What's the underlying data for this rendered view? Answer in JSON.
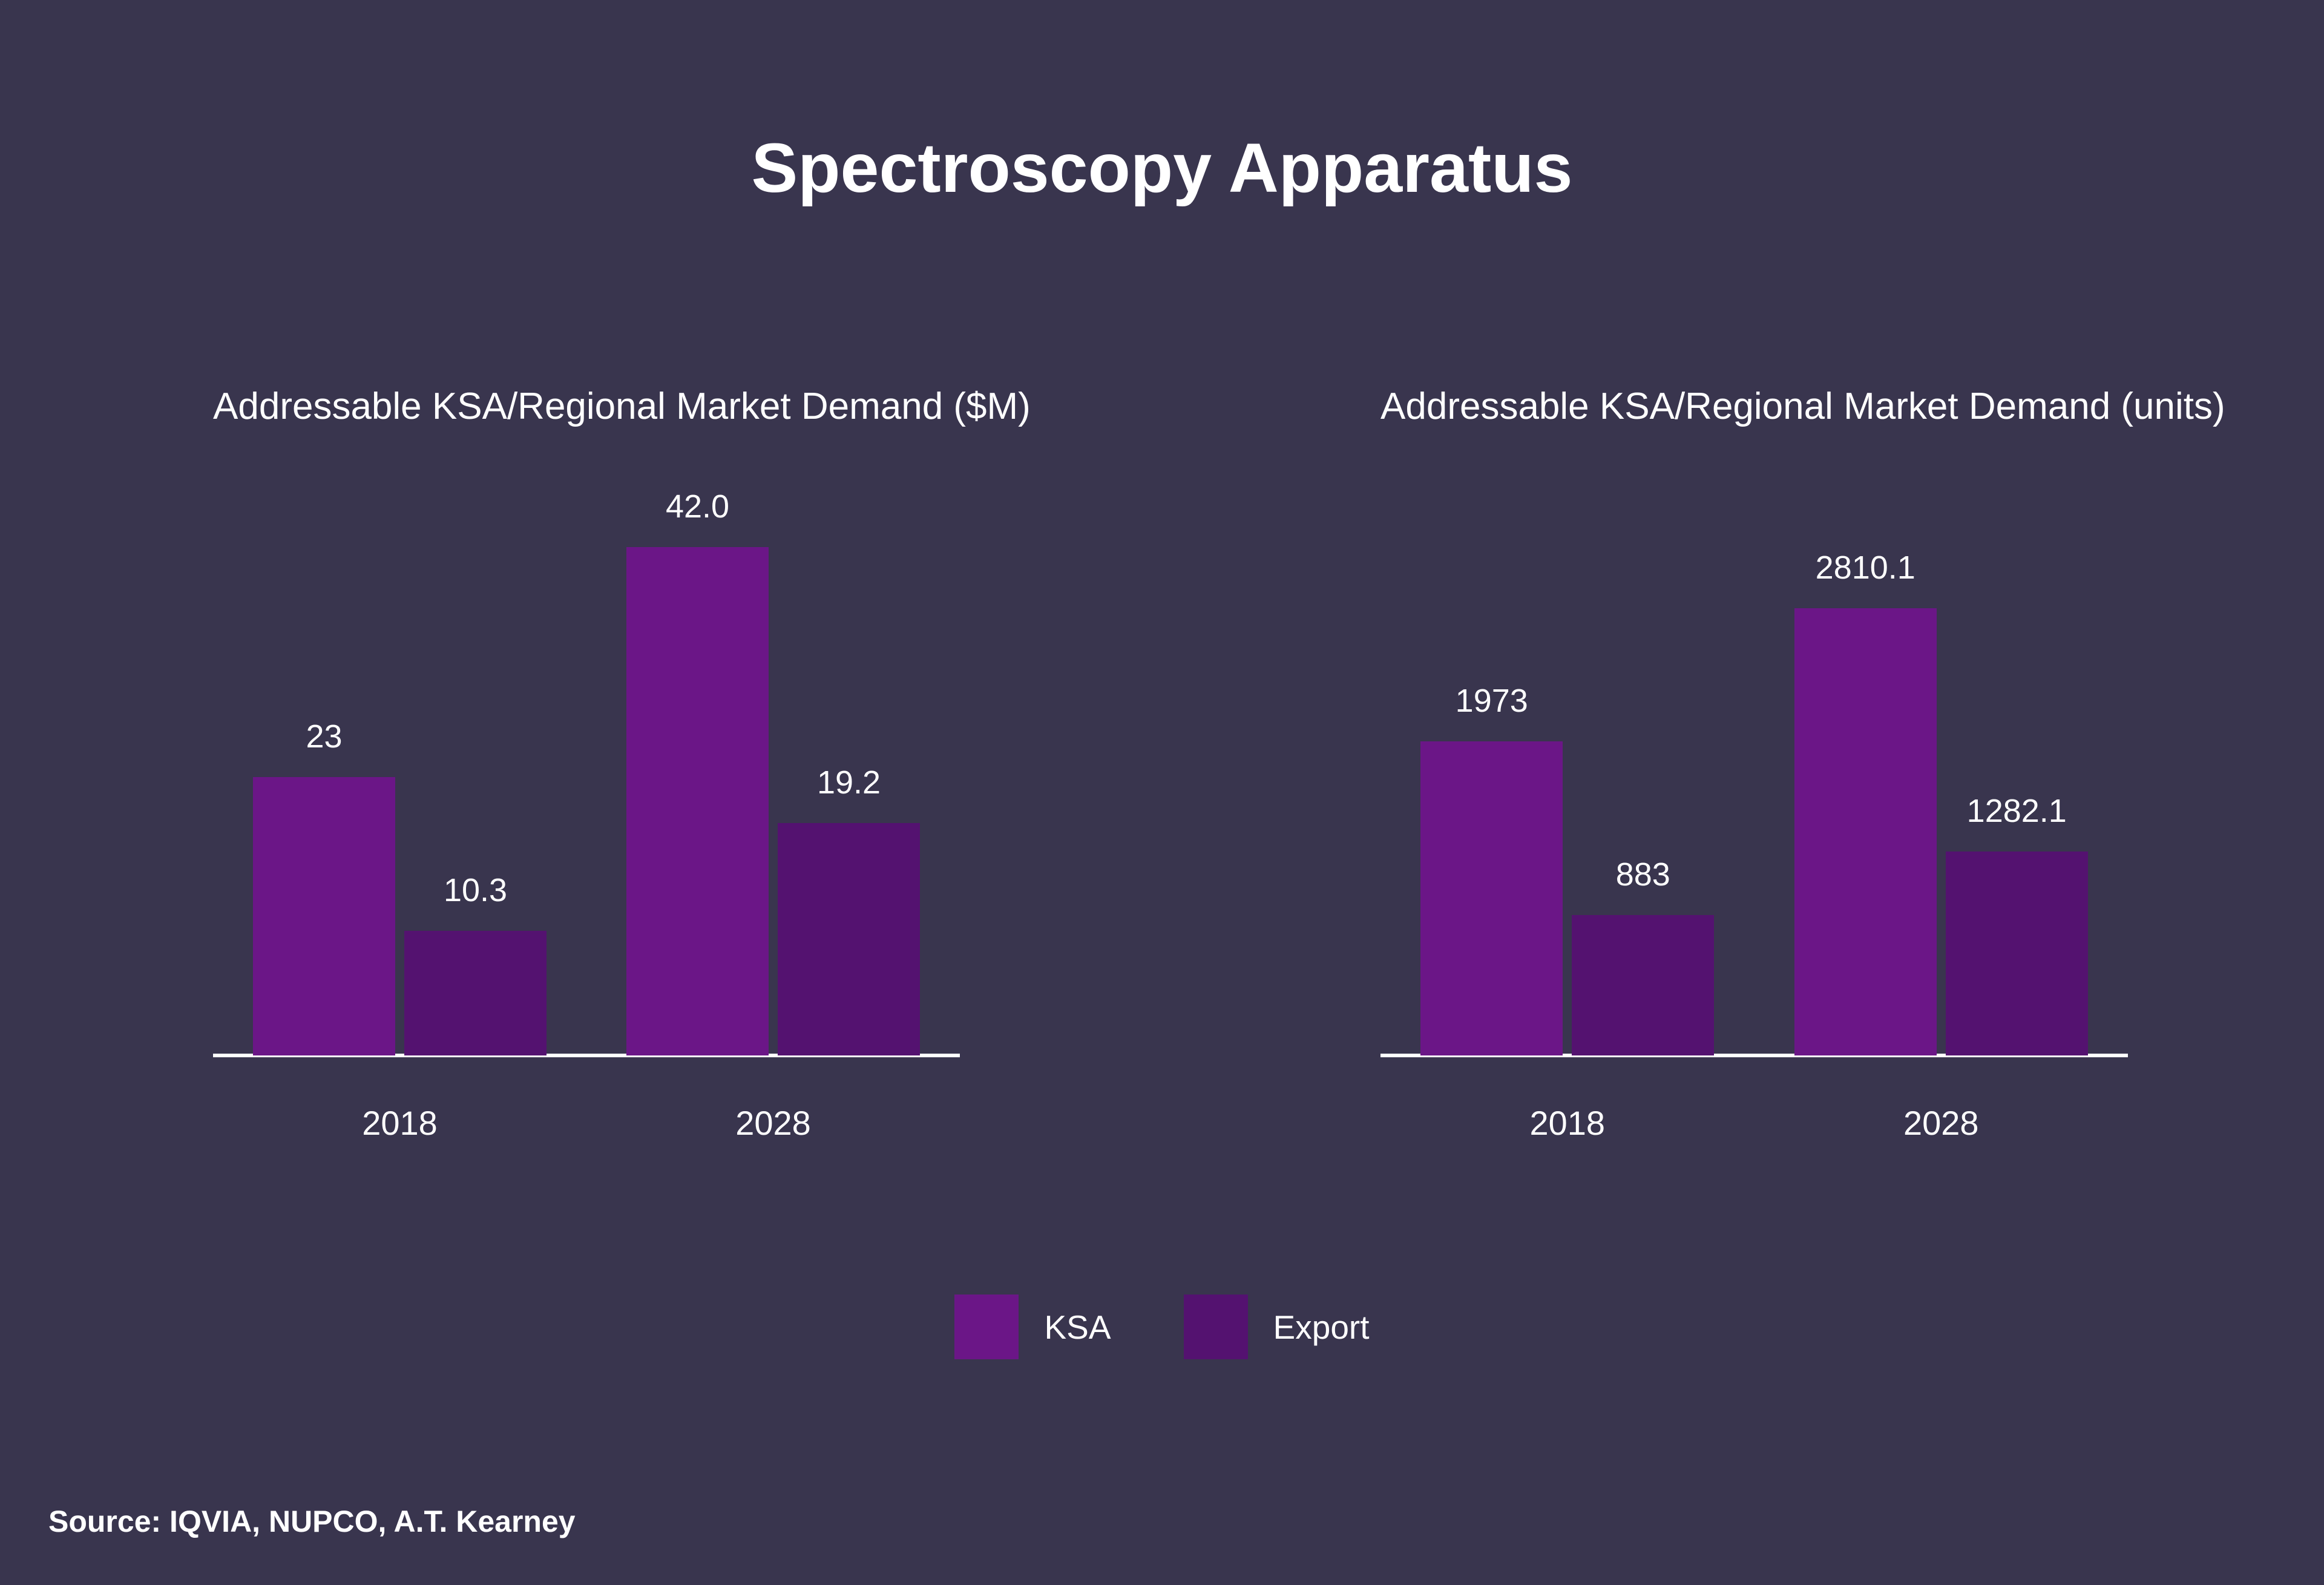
{
  "title": "Spectroscopy Apparatus",
  "source": "Source: IQVIA, NUPCO, A.T. Kearney",
  "colors": {
    "background": "#39354E",
    "ksa": "#6B1687",
    "export": "#541270",
    "text": "#FFFFFF",
    "axis": "#FFFFFF"
  },
  "legend": [
    {
      "label": "KSA",
      "color": "#6B1687"
    },
    {
      "label": "Export",
      "color": "#541270"
    }
  ],
  "chart_data": [
    {
      "type": "bar",
      "title": "Addressable KSA/Regional Market Demand ($M)",
      "categories": [
        "2018",
        "2028"
      ],
      "series": [
        {
          "name": "KSA",
          "color": "#6B1687",
          "values": [
            23,
            42.0
          ],
          "labels": [
            "23",
            "42.0"
          ]
        },
        {
          "name": "Export",
          "color": "#541270",
          "values": [
            10.3,
            19.2
          ],
          "labels": [
            "10.3",
            "19.2"
          ]
        }
      ],
      "xlabel": "",
      "ylabel": "",
      "ylim": [
        0,
        48
      ],
      "grid": false,
      "legend_position": "bottom-center-shared",
      "data_labels": true
    },
    {
      "type": "bar",
      "title": "Addressable KSA/Regional Market Demand (units)",
      "categories": [
        "2018",
        "2028"
      ],
      "series": [
        {
          "name": "KSA",
          "color": "#6B1687",
          "values": [
            1973,
            2810.1
          ],
          "labels": [
            "1973",
            "2810.1"
          ]
        },
        {
          "name": "Export",
          "color": "#541270",
          "values": [
            883,
            1282.1
          ],
          "labels": [
            "883",
            "1282.1"
          ]
        }
      ],
      "xlabel": "",
      "ylabel": "",
      "ylim": [
        0,
        3650
      ],
      "grid": false,
      "legend_position": "bottom-center-shared",
      "data_labels": true
    }
  ]
}
